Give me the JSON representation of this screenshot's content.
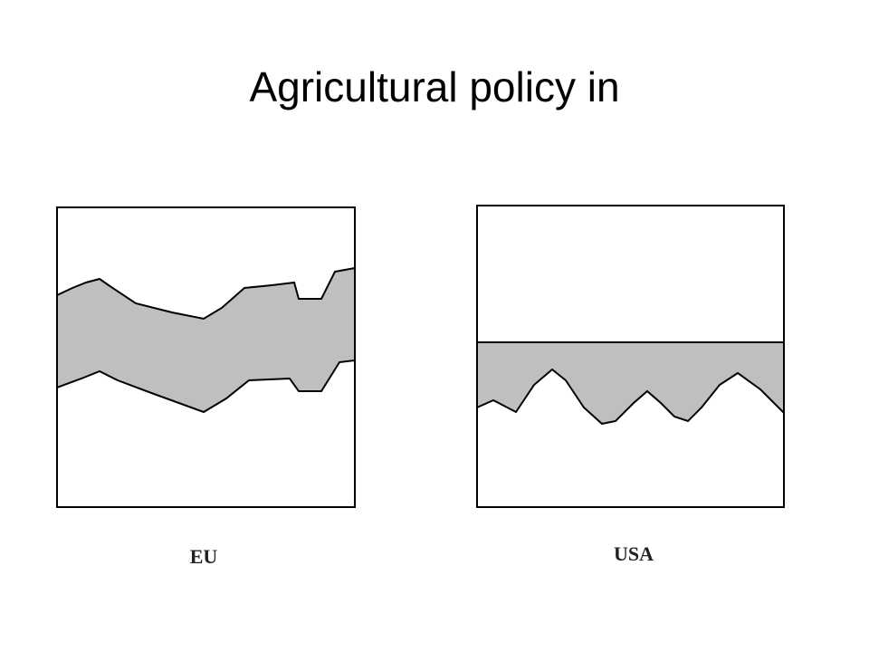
{
  "header": {
    "title": "Agricultural policy in"
  },
  "panels": [
    {
      "label": "EU"
    },
    {
      "label": "USA"
    }
  ]
}
